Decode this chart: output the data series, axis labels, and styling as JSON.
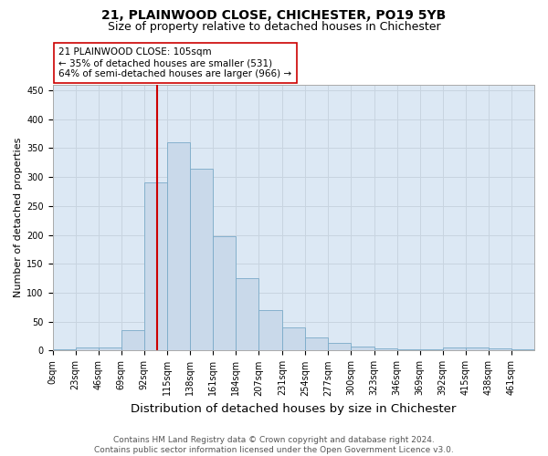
{
  "title": "21, PLAINWOOD CLOSE, CHICHESTER, PO19 5YB",
  "subtitle": "Size of property relative to detached houses in Chichester",
  "xlabel": "Distribution of detached houses by size in Chichester",
  "ylabel": "Number of detached properties",
  "bar_values": [
    3,
    5,
    6,
    35,
    290,
    360,
    315,
    197,
    125,
    70,
    40,
    23,
    14,
    7,
    4,
    3,
    3,
    6,
    5,
    4,
    3
  ],
  "bin_labels": [
    "0sqm",
    "23sqm",
    "46sqm",
    "69sqm",
    "92sqm",
    "115sqm",
    "138sqm",
    "161sqm",
    "184sqm",
    "207sqm",
    "231sqm",
    "254sqm",
    "277sqm",
    "300sqm",
    "323sqm",
    "346sqm",
    "369sqm",
    "392sqm",
    "415sqm",
    "438sqm",
    "461sqm"
  ],
  "bin_edges": [
    0,
    23,
    46,
    69,
    92,
    115,
    138,
    161,
    184,
    207,
    231,
    254,
    277,
    300,
    323,
    346,
    369,
    392,
    415,
    438,
    461,
    484
  ],
  "bar_color": "#c9d9ea",
  "bar_edge_color": "#7aaac8",
  "vline_x": 105,
  "vline_color": "#cc0000",
  "annotation_text": "21 PLAINWOOD CLOSE: 105sqm\n← 35% of detached houses are smaller (531)\n64% of semi-detached houses are larger (966) →",
  "annotation_box_color": "#ffffff",
  "annotation_box_edge": "#cc0000",
  "ylim": [
    0,
    460
  ],
  "yticks": [
    0,
    50,
    100,
    150,
    200,
    250,
    300,
    350,
    400,
    450
  ],
  "grid_color": "#c8d4e0",
  "background_color": "#dce8f4",
  "footer_text": "Contains HM Land Registry data © Crown copyright and database right 2024.\nContains public sector information licensed under the Open Government Licence v3.0.",
  "title_fontsize": 10,
  "subtitle_fontsize": 9,
  "xlabel_fontsize": 9.5,
  "ylabel_fontsize": 8,
  "tick_fontsize": 7,
  "annotation_fontsize": 7.5,
  "footer_fontsize": 6.5
}
